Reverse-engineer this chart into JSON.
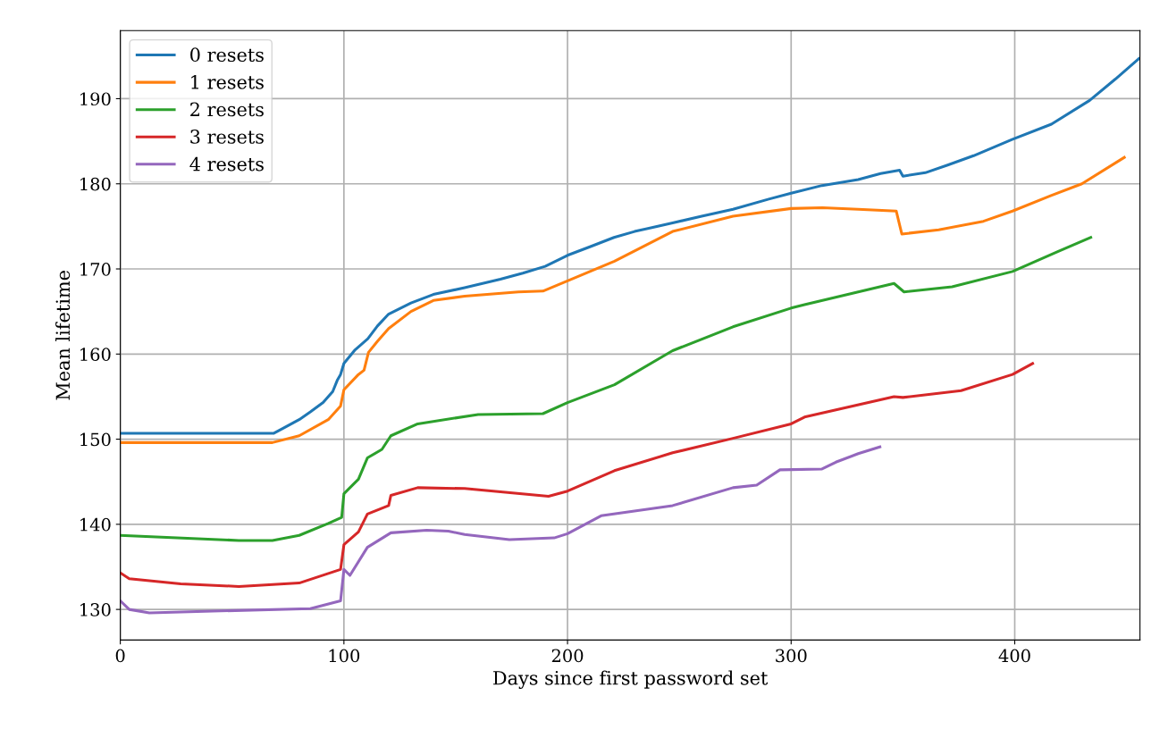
{
  "chart_data": {
    "type": "line",
    "xlabel": "Days since first password set",
    "ylabel": "Mean lifetime",
    "xlim": [
      0,
      456
    ],
    "ylim": [
      126.4,
      198
    ],
    "xticks": [
      0,
      100,
      200,
      300,
      400
    ],
    "yticks": [
      130,
      140,
      150,
      160,
      170,
      180,
      190
    ],
    "grid": true,
    "legend": "top left",
    "marker": "none",
    "line_style": "solid",
    "series": [
      {
        "name": "0 resets",
        "color": "#1f77b4",
        "x": [
          0,
          68.7,
          73,
          80,
          85,
          90.7,
          95,
          97,
          98.5,
          100,
          105,
          110.7,
          115,
          120,
          130,
          140,
          154,
          170,
          180,
          190,
          200,
          210,
          220.8,
          230,
          247,
          260,
          274,
          290,
          300,
          313.8,
          330,
          340,
          348.5,
          350,
          360,
          370,
          381.6,
          398.8,
          416.4,
          433.5,
          445,
          455.5
        ],
        "values": [
          150.7,
          150.7,
          151.3,
          152.3,
          153.2,
          154.3,
          155.6,
          156.9,
          157.6,
          158.9,
          160.5,
          161.8,
          163.3,
          164.7,
          166,
          167,
          167.8,
          168.8,
          169.5,
          170.3,
          171.6,
          172.6,
          173.7,
          174.4,
          175.4,
          176.2,
          177,
          178.2,
          178.9,
          179.8,
          180.5,
          181.2,
          181.6,
          180.9,
          181.3,
          182.2,
          183.3,
          185.2,
          187,
          189.8,
          192.3,
          194.7
        ]
      },
      {
        "name": "1 resets",
        "color": "#ff7f0e",
        "x": [
          0,
          68,
          80,
          93,
          98.5,
          100,
          106.5,
          109,
          111,
          115,
          120,
          130,
          140,
          154,
          178,
          189,
          200,
          221,
          247,
          274,
          300,
          314,
          330,
          347,
          349.5,
          366,
          386,
          399,
          416,
          430,
          449
        ],
        "values": [
          149.6,
          149.6,
          150.4,
          152.3,
          153.9,
          155.8,
          157.6,
          158.1,
          160.2,
          161.5,
          163,
          165,
          166.3,
          166.8,
          167.3,
          167.4,
          168.6,
          170.9,
          174.4,
          176.2,
          177.1,
          177.2,
          177.0,
          176.8,
          174.1,
          174.6,
          175.6,
          176.8,
          178.6,
          180,
          183.1
        ]
      },
      {
        "name": "2 resets",
        "color": "#2ca02c",
        "x": [
          0,
          53,
          68,
          80,
          93,
          99,
          100,
          106.5,
          110.5,
          117,
          121,
          133,
          160,
          189,
          200,
          221,
          247,
          274,
          300,
          306,
          346,
          350.5,
          372,
          399,
          419,
          434
        ],
        "values": [
          138.7,
          138.1,
          138.1,
          138.7,
          140.1,
          140.8,
          143.6,
          145.3,
          147.8,
          148.8,
          150.4,
          151.8,
          152.9,
          153,
          154.3,
          156.4,
          160.4,
          163.2,
          165.4,
          165.8,
          168.3,
          167.3,
          167.9,
          169.7,
          172,
          173.7
        ]
      },
      {
        "name": "3 resets",
        "color": "#d62728",
        "x": [
          0,
          4,
          27,
          53,
          80,
          98.5,
          100,
          106.5,
          110.5,
          120,
          121,
          133,
          154,
          191.5,
          200,
          221,
          247,
          274,
          300,
          306,
          346,
          350,
          376,
          399,
          408
        ],
        "values": [
          134.3,
          133.6,
          133,
          132.7,
          133.1,
          134.7,
          137.6,
          139.1,
          141.2,
          142.2,
          143.4,
          144.3,
          144.2,
          143.3,
          143.9,
          146.3,
          148.4,
          150.1,
          151.8,
          152.6,
          155,
          154.9,
          155.7,
          157.6,
          158.9
        ]
      },
      {
        "name": "4 resets",
        "color": "#9467bd",
        "x": [
          0,
          4,
          13,
          85,
          98.5,
          100,
          102.7,
          110.5,
          121,
          137,
          146.7,
          154,
          174,
          194,
          200,
          215,
          247,
          274,
          284.6,
          295,
          313.8,
          320,
          330,
          339.7
        ],
        "values": [
          131,
          130,
          129.6,
          130.1,
          131,
          134.7,
          134,
          137.3,
          139,
          139.3,
          139.2,
          138.8,
          138.2,
          138.4,
          138.9,
          141,
          142.2,
          144.3,
          144.6,
          146.4,
          146.5,
          147.3,
          148.3,
          149.1
        ]
      }
    ]
  }
}
